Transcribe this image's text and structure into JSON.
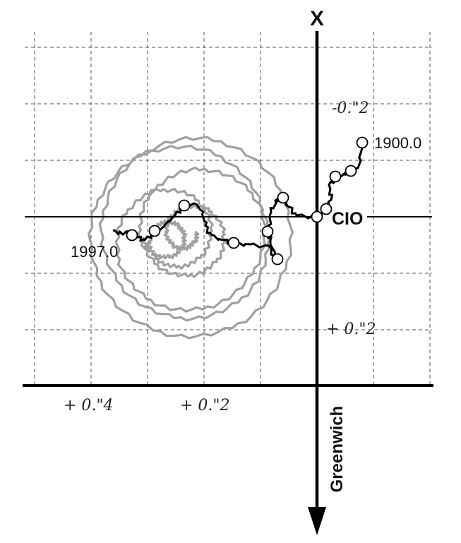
{
  "diagram": {
    "labels": {
      "x_axis": "X",
      "y_axis": "Greenwich",
      "origin": "CIO",
      "start_year": "1900.0",
      "end_year": "1997.0"
    },
    "ticks": {
      "x": [
        "-0.\"2",
        "+ 0.\"2"
      ],
      "y": [
        "+ 0.\"4",
        "+ 0.\"2"
      ]
    },
    "colors": {
      "polar_motion": "#a0a0a0",
      "mean_pole": "#000000",
      "grid": "#555555",
      "axes": "#000000"
    }
  }
}
